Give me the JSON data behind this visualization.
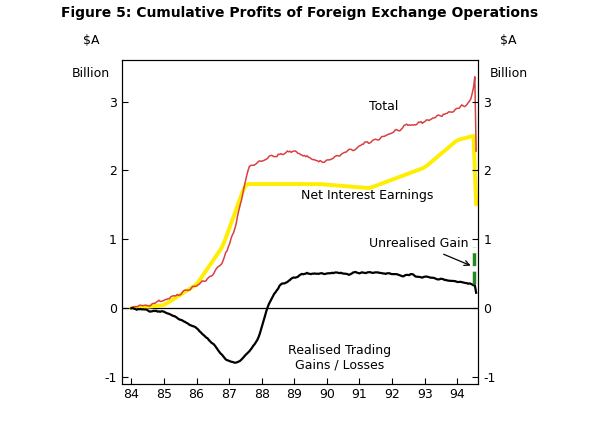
{
  "title": "Figure 5: Cumulative Profits of Foreign Exchange Operations",
  "ylabel_left": "$A\nBillion",
  "ylabel_right": "$A\nBillion",
  "ylim": [
    -1.1,
    3.6
  ],
  "yticks": [
    -1,
    0,
    1,
    2,
    3
  ],
  "xlim_start": 1983.7,
  "xlim_end": 1994.65,
  "xtick_years": [
    84,
    85,
    86,
    87,
    88,
    89,
    90,
    91,
    92,
    93,
    94
  ],
  "bg_color": "#ffffff",
  "line_colors": {
    "total": "#d94040",
    "net_interest": "#ffee00",
    "realised": "#000000",
    "unrealised": "#228822"
  },
  "line_widths": {
    "total": 1.1,
    "net_interest": 2.8,
    "realised": 1.6,
    "unrealised": 2.5
  },
  "labels": {
    "total": "Total",
    "net_interest": "Net Interest Earnings",
    "realised": "Realised Trading\nGains / Losses",
    "unrealised": "Unrealised Gain"
  }
}
